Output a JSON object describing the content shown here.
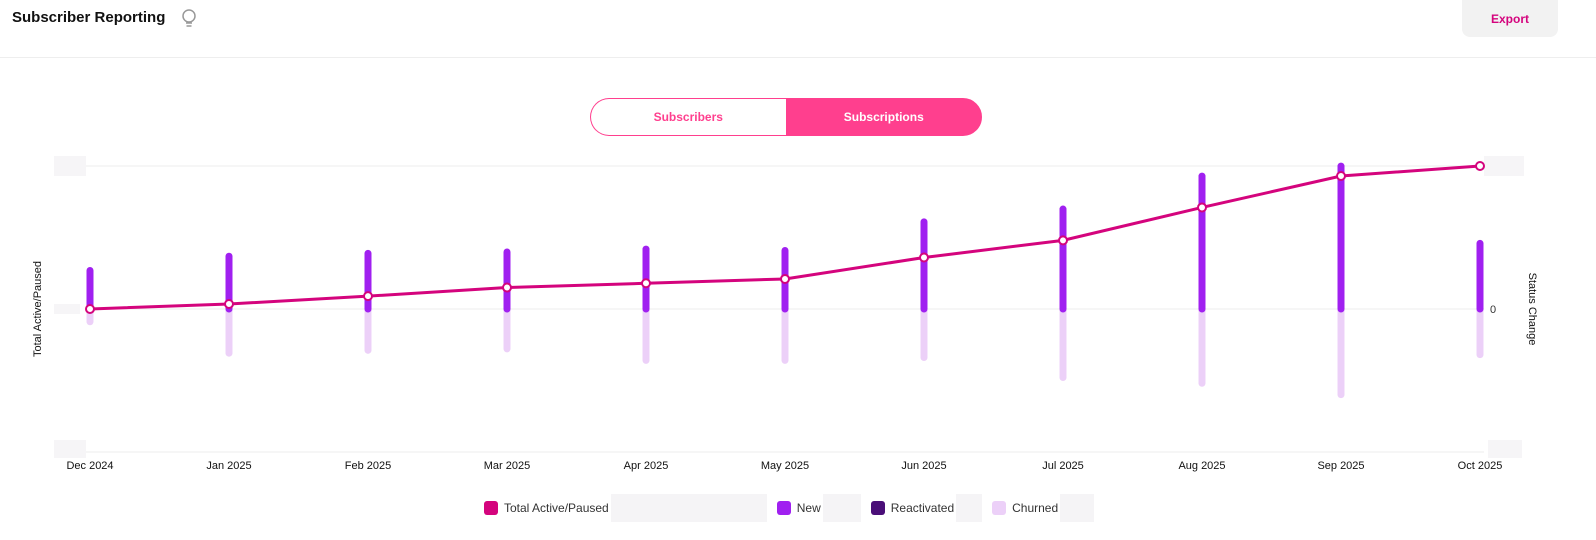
{
  "header": {
    "title": "Subscriber Reporting",
    "icon": "lightbulb-icon",
    "export_label": "Export"
  },
  "toggle": {
    "options": [
      "Subscribers",
      "Subscriptions"
    ],
    "selected": "Subscriptions"
  },
  "colors": {
    "total": "#d4047d",
    "new": "#a020f0",
    "reactivated": "#4a0e78",
    "churned": "#ecd0f8",
    "accent": "#ff3f8e"
  },
  "chart_data": {
    "type": "bar+line",
    "categories": [
      "Dec 2024",
      "Jan 2025",
      "Feb 2025",
      "Mar 2025",
      "Apr 2025",
      "May 2025",
      "Jun 2025",
      "Jul 2025",
      "Aug 2025",
      "Sep 2025",
      "Oct 2025"
    ],
    "ylabel_left": "Total Active/Paused",
    "ylabel_right": "Status Change",
    "right_tick_labels": [
      "0"
    ],
    "grid": true,
    "legend_placement": "bottom",
    "series": [
      {
        "name": "Total Active/Paused",
        "type": "line",
        "axis": "left",
        "values": [
          0,
          3.5,
          9,
          15,
          18,
          21,
          36,
          48,
          71,
          93,
          100
        ]
      },
      {
        "name": "New",
        "type": "bar",
        "axis": "right",
        "values": [
          29,
          39,
          41,
          42,
          44,
          43,
          63,
          72,
          95,
          102,
          48
        ]
      },
      {
        "name": "Reactivated",
        "type": "bar",
        "axis": "right",
        "values": [
          0,
          0,
          0,
          0,
          0,
          0,
          0,
          0,
          0,
          0,
          0
        ]
      },
      {
        "name": "Churned",
        "type": "bar",
        "axis": "right",
        "values": [
          -11,
          -33,
          -31,
          -30,
          -38,
          -38,
          -36,
          -50,
          -54,
          -62,
          -34
        ]
      }
    ]
  }
}
